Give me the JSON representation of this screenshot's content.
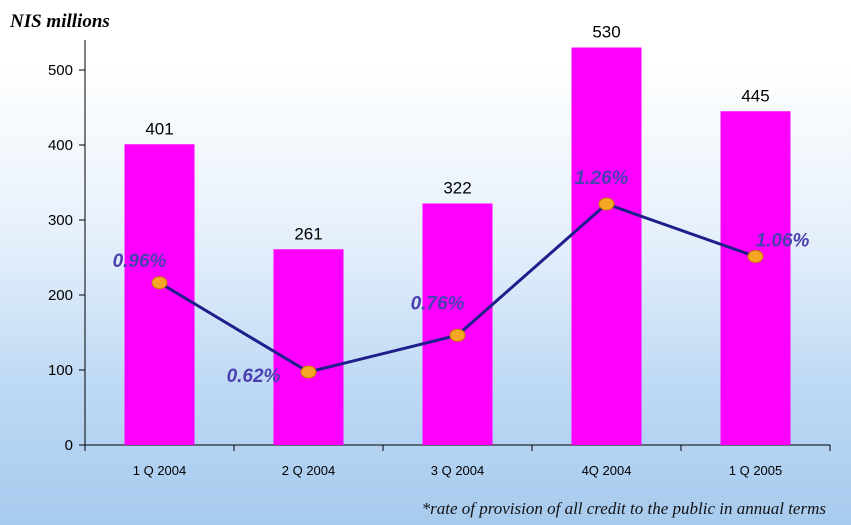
{
  "chart_data": {
    "type": "bar",
    "y_unit_label": "NIS millions",
    "categories": [
      "1 Q 2004",
      "2 Q 2004",
      "3 Q 2004",
      "4Q 2004",
      "1 Q 2005"
    ],
    "series": [
      {
        "type": "bar",
        "values": [
          401,
          261,
          322,
          530,
          445
        ],
        "data_labels": [
          "401",
          "261",
          "322",
          "530",
          "445"
        ],
        "color": "#ff00ff"
      },
      {
        "type": "line",
        "values": [
          0.96,
          0.62,
          0.76,
          1.26,
          1.06
        ],
        "data_labels": [
          "0.96%",
          "0.62%",
          "0.76%",
          "1.26%",
          "1.06%"
        ],
        "line_color": "#1f1f8c",
        "marker_color": "#f5a623",
        "label_color": "#4b3fb0"
      }
    ],
    "yticks": [
      0,
      100,
      200,
      300,
      400,
      500
    ],
    "ylim": [
      0,
      540
    ],
    "grid": false,
    "legend": "none",
    "footnote": "*rate of provision of all credit to the public in annual terms"
  }
}
